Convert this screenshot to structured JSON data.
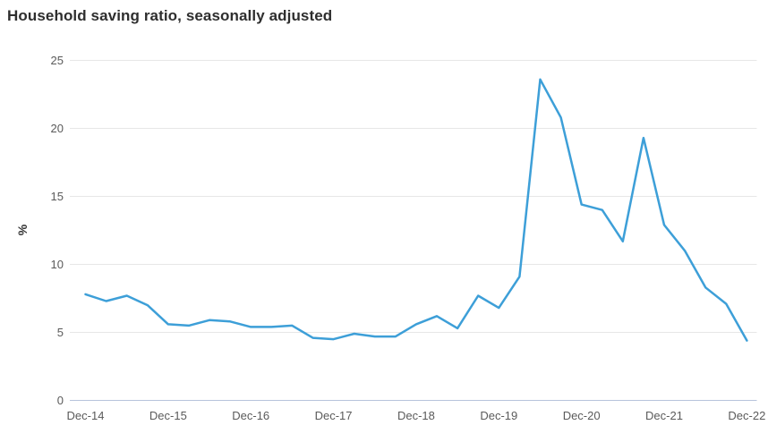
{
  "title": "Household saving ratio, seasonally adjusted",
  "chart_data": {
    "type": "line",
    "title": "Household saving ratio, seasonally adjusted",
    "xlabel": "",
    "ylabel": "%",
    "ylim": [
      0,
      25
    ],
    "yticks": [
      0,
      5,
      10,
      15,
      20,
      25
    ],
    "grid": true,
    "legend": false,
    "x": [
      "Dec-14",
      "Mar-15",
      "Jun-15",
      "Sep-15",
      "Dec-15",
      "Mar-16",
      "Jun-16",
      "Sep-16",
      "Dec-16",
      "Mar-17",
      "Jun-17",
      "Sep-17",
      "Dec-17",
      "Mar-18",
      "Jun-18",
      "Sep-18",
      "Dec-18",
      "Mar-19",
      "Jun-19",
      "Sep-19",
      "Dec-19",
      "Mar-20",
      "Jun-20",
      "Sep-20",
      "Dec-20",
      "Mar-21",
      "Jun-21",
      "Sep-21",
      "Dec-21",
      "Mar-22",
      "Jun-22",
      "Sep-22",
      "Dec-22"
    ],
    "values": [
      7.8,
      7.3,
      7.7,
      7.0,
      5.6,
      5.5,
      5.9,
      5.8,
      5.4,
      5.4,
      5.5,
      4.6,
      4.5,
      4.9,
      4.7,
      4.7,
      5.6,
      6.2,
      5.3,
      7.7,
      6.8,
      9.1,
      23.6,
      20.8,
      14.4,
      14.0,
      11.7,
      19.3,
      12.9,
      11.0,
      8.3,
      7.1,
      4.4
    ],
    "xtick_labels": [
      "Dec-14",
      "Dec-15",
      "Dec-16",
      "Dec-17",
      "Dec-18",
      "Dec-19",
      "Dec-20",
      "Dec-21",
      "Dec-22"
    ],
    "xtick_every": 4,
    "colors": {
      "line": "#3d9fd8",
      "gridline": "#e7e7e7",
      "zero_line": "#b7c3dc",
      "tick_text": "#5a5a5a",
      "title_text": "#2e2e2e"
    }
  }
}
